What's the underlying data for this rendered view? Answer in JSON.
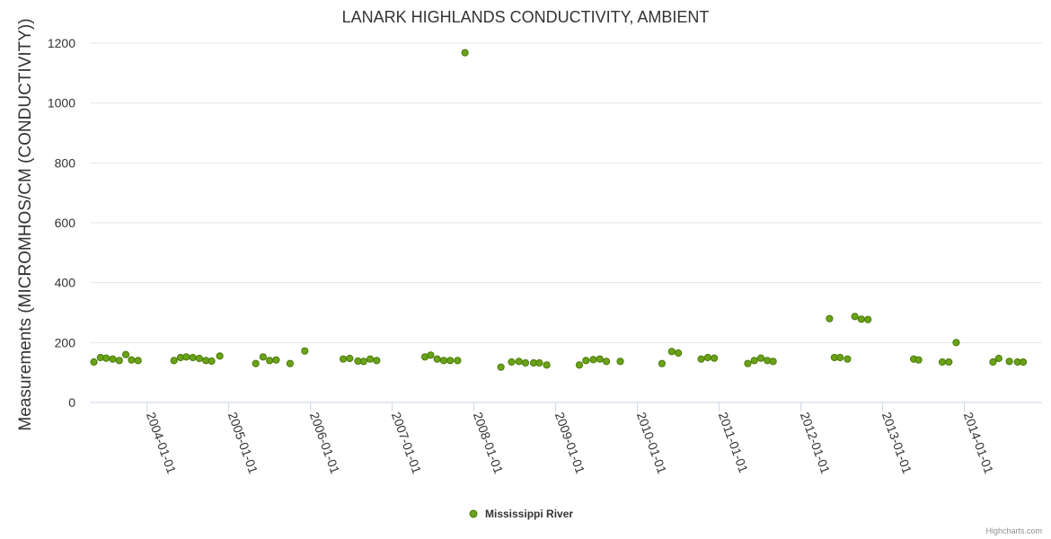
{
  "chart_data": {
    "type": "scatter",
    "title": "LANARK HIGHLANDS CONDUCTIVITY, AMBIENT",
    "xlabel": "",
    "ylabel": "Measurements (MICROMHOS/CM (CONDUCTIVITY))",
    "ylim": [
      0,
      1200
    ],
    "yticks": [
      0,
      200,
      400,
      600,
      800,
      1000,
      1200
    ],
    "xlim": [
      2003.3,
      2014.95
    ],
    "xticks": [
      {
        "value": 2004,
        "label": "2004-01-01"
      },
      {
        "value": 2005,
        "label": "2005-01-01"
      },
      {
        "value": 2006,
        "label": "2006-01-01"
      },
      {
        "value": 2007,
        "label": "2007-01-01"
      },
      {
        "value": 2008,
        "label": "2008-01-01"
      },
      {
        "value": 2009,
        "label": "2009-01-01"
      },
      {
        "value": 2010,
        "label": "2010-01-01"
      },
      {
        "value": 2011,
        "label": "2011-01-01"
      },
      {
        "value": 2012,
        "label": "2012-01-01"
      },
      {
        "value": 2013,
        "label": "2013-01-01"
      },
      {
        "value": 2014,
        "label": "2014-01-01"
      }
    ],
    "grid": true,
    "legend_position": "bottom-center",
    "series": [
      {
        "name": "Mississippi River",
        "color": "#6aa318",
        "points": [
          [
            2003.35,
            135
          ],
          [
            2003.43,
            150
          ],
          [
            2003.5,
            148
          ],
          [
            2003.58,
            145
          ],
          [
            2003.66,
            140
          ],
          [
            2003.74,
            160
          ],
          [
            2003.81,
            142
          ],
          [
            2003.89,
            140
          ],
          [
            2004.33,
            140
          ],
          [
            2004.41,
            150
          ],
          [
            2004.48,
            152
          ],
          [
            2004.56,
            150
          ],
          [
            2004.64,
            147
          ],
          [
            2004.72,
            140
          ],
          [
            2004.79,
            138
          ],
          [
            2004.89,
            155
          ],
          [
            2005.33,
            130
          ],
          [
            2005.42,
            152
          ],
          [
            2005.5,
            140
          ],
          [
            2005.58,
            142
          ],
          [
            2005.75,
            130
          ],
          [
            2005.93,
            172
          ],
          [
            2006.4,
            145
          ],
          [
            2006.48,
            147
          ],
          [
            2006.58,
            138
          ],
          [
            2006.65,
            137
          ],
          [
            2006.73,
            145
          ],
          [
            2006.81,
            140
          ],
          [
            2007.4,
            152
          ],
          [
            2007.47,
            158
          ],
          [
            2007.55,
            145
          ],
          [
            2007.63,
            140
          ],
          [
            2007.71,
            140
          ],
          [
            2007.8,
            140
          ],
          [
            2007.89,
            1168
          ],
          [
            2008.33,
            118
          ],
          [
            2008.46,
            135
          ],
          [
            2008.55,
            137
          ],
          [
            2008.63,
            132
          ],
          [
            2008.73,
            132
          ],
          [
            2008.8,
            132
          ],
          [
            2008.89,
            125
          ],
          [
            2009.29,
            125
          ],
          [
            2009.37,
            140
          ],
          [
            2009.46,
            143
          ],
          [
            2009.54,
            145
          ],
          [
            2009.62,
            137
          ],
          [
            2009.79,
            137
          ],
          [
            2010.3,
            130
          ],
          [
            2010.42,
            170
          ],
          [
            2010.5,
            165
          ],
          [
            2010.78,
            145
          ],
          [
            2010.86,
            150
          ],
          [
            2010.94,
            148
          ],
          [
            2011.35,
            130
          ],
          [
            2011.43,
            140
          ],
          [
            2011.51,
            148
          ],
          [
            2011.59,
            140
          ],
          [
            2011.66,
            137
          ],
          [
            2012.35,
            280
          ],
          [
            2012.41,
            150
          ],
          [
            2012.48,
            150
          ],
          [
            2012.57,
            145
          ],
          [
            2012.66,
            287
          ],
          [
            2012.74,
            278
          ],
          [
            2012.82,
            277
          ],
          [
            2013.38,
            145
          ],
          [
            2013.44,
            142
          ],
          [
            2013.73,
            135
          ],
          [
            2013.81,
            135
          ],
          [
            2013.9,
            200
          ],
          [
            2014.35,
            135
          ],
          [
            2014.42,
            147
          ],
          [
            2014.55,
            137
          ],
          [
            2014.65,
            135
          ],
          [
            2014.72,
            135
          ]
        ]
      }
    ]
  },
  "credits": "Highcharts.com"
}
